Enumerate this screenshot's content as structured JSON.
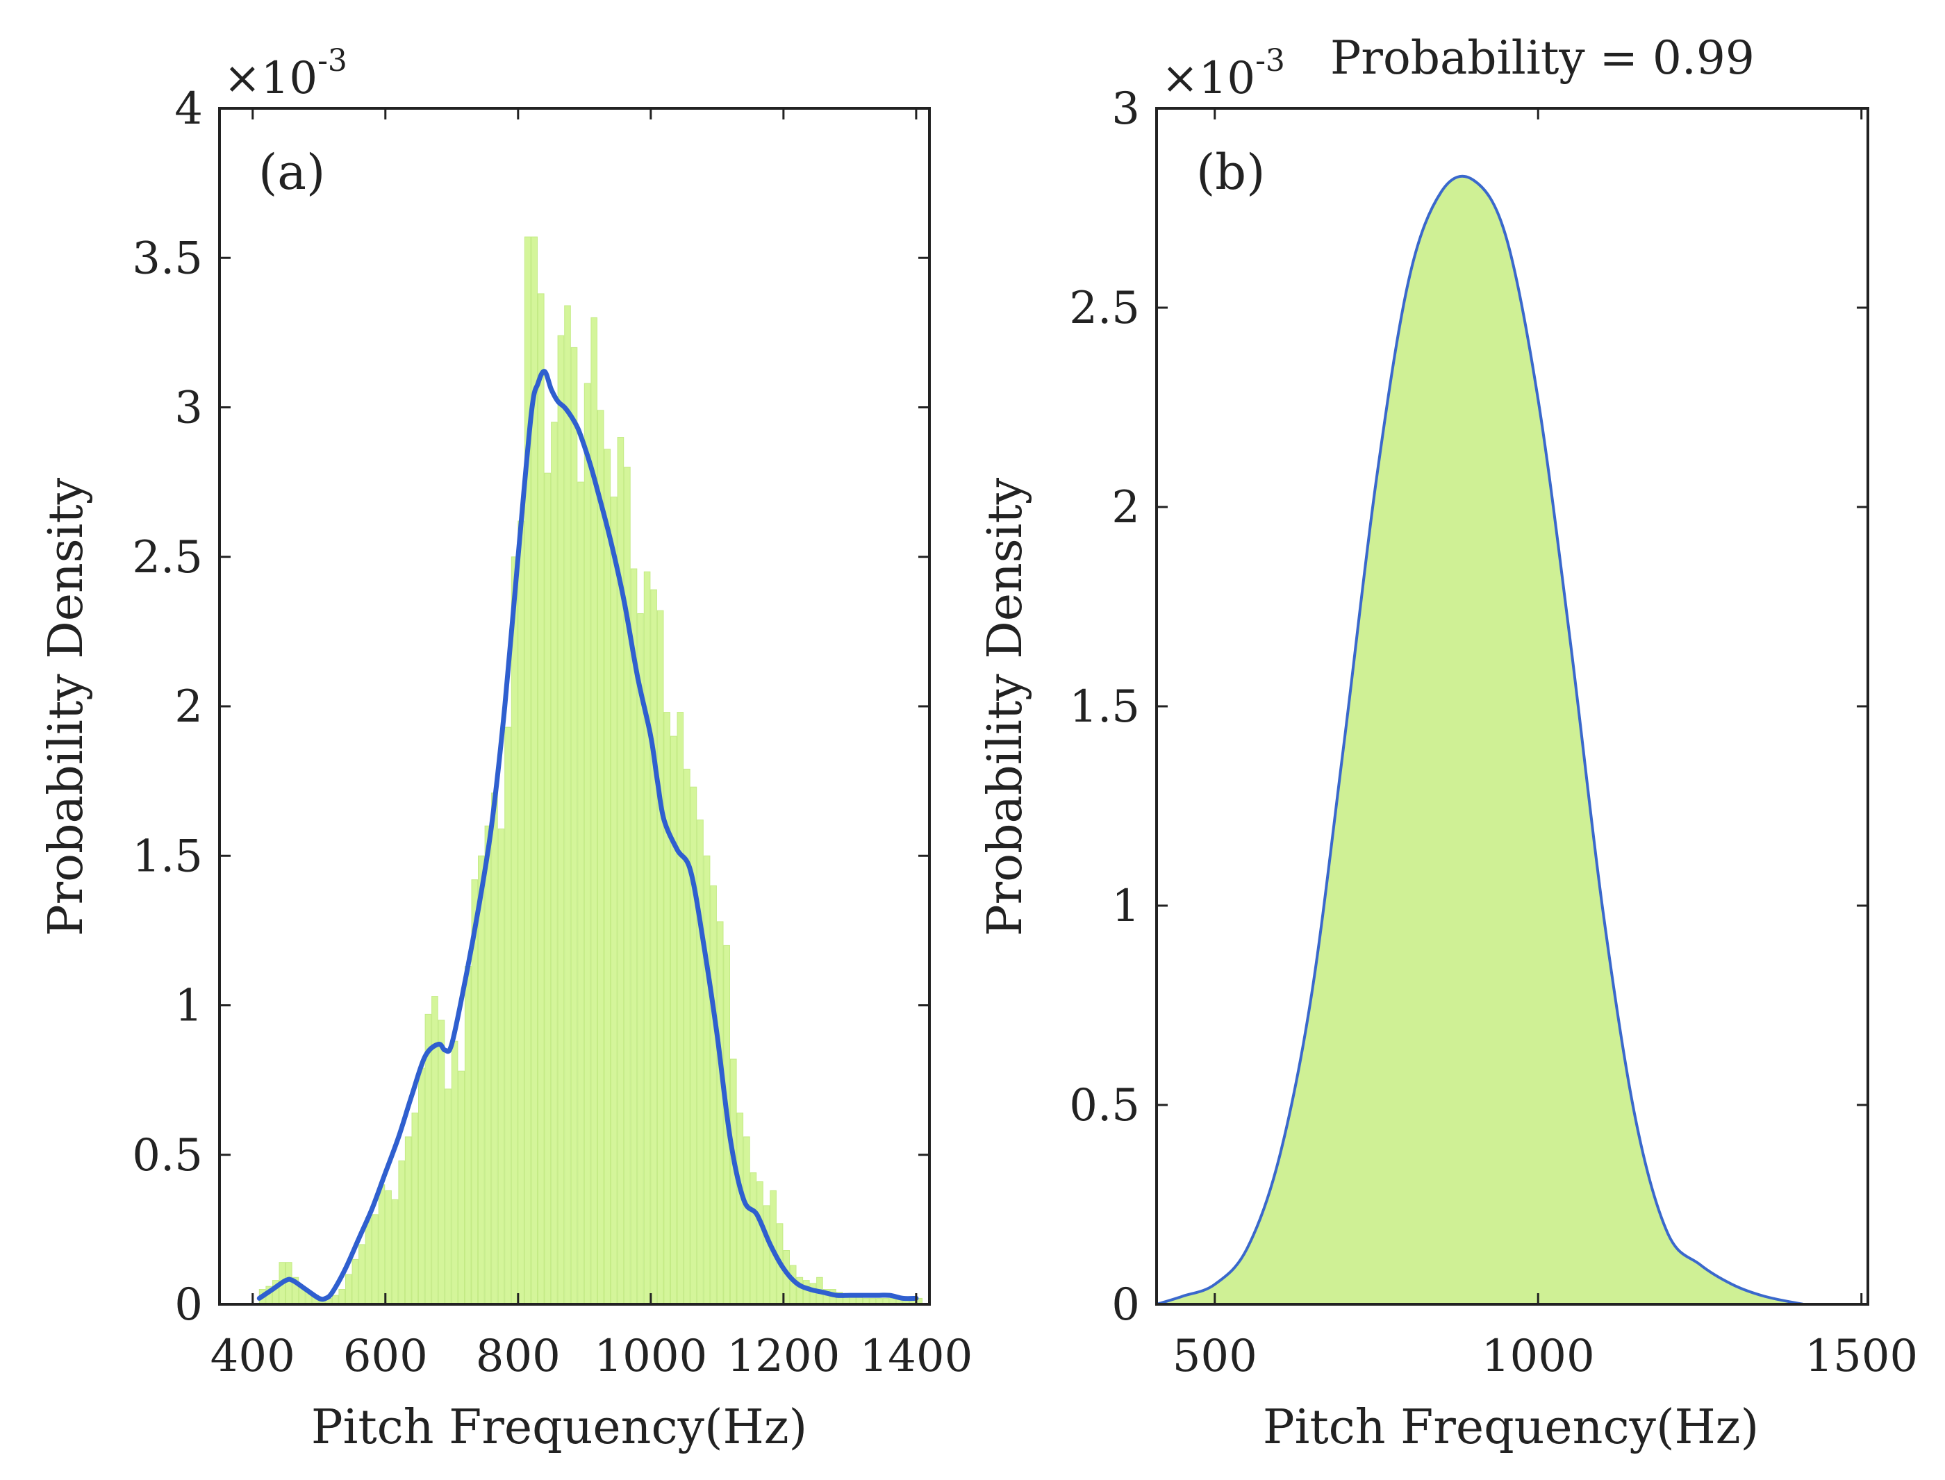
{
  "chart_data": [
    {
      "id": "a",
      "type": "histogram+line",
      "panel_label": "(a)",
      "xlabel": "Pitch Frequency(Hz)",
      "ylabel": "Probability Density",
      "y_exponent_base": "×10",
      "y_exponent_power": "-3",
      "xlim": [
        350,
        1420
      ],
      "ylim": [
        0,
        4.0
      ],
      "xticks": [
        400,
        600,
        800,
        1000,
        1200,
        1400
      ],
      "yticks": [
        0,
        0.5,
        1,
        1.5,
        2,
        2.5,
        3,
        3.5,
        4
      ],
      "ytick_labels": [
        "0",
        "0.5",
        "1",
        "1.5",
        "2",
        "2.5",
        "3",
        "3.5",
        "4"
      ],
      "hist_bin_width": 10,
      "hist": {
        "bin_starts": [
          410,
          420,
          430,
          440,
          450,
          460,
          470,
          480,
          490,
          500,
          510,
          520,
          530,
          540,
          550,
          560,
          570,
          580,
          590,
          600,
          610,
          620,
          630,
          640,
          650,
          660,
          670,
          680,
          690,
          700,
          710,
          720,
          730,
          740,
          750,
          760,
          770,
          780,
          790,
          800,
          810,
          820,
          830,
          840,
          850,
          860,
          870,
          880,
          890,
          900,
          910,
          920,
          930,
          940,
          950,
          960,
          970,
          980,
          990,
          1000,
          1010,
          1020,
          1030,
          1040,
          1050,
          1060,
          1070,
          1080,
          1090,
          1100,
          1110,
          1120,
          1130,
          1140,
          1150,
          1160,
          1170,
          1180,
          1190,
          1200,
          1210,
          1220,
          1230,
          1240,
          1250,
          1260,
          1270,
          1280,
          1290,
          1300,
          1310,
          1320,
          1330,
          1340,
          1350,
          1360,
          1370,
          1380,
          1390,
          1400
        ],
        "values": [
          0.05,
          0.06,
          0.08,
          0.14,
          0.14,
          0.09,
          0.06,
          0.04,
          0.03,
          0.02,
          0.02,
          0.03,
          0.05,
          0.1,
          0.15,
          0.2,
          0.29,
          0.3,
          0.4,
          0.38,
          0.35,
          0.48,
          0.56,
          0.64,
          0.79,
          0.97,
          1.03,
          0.95,
          0.72,
          0.88,
          0.78,
          1.13,
          1.42,
          1.5,
          1.6,
          1.71,
          1.59,
          1.93,
          2.5,
          2.62,
          3.57,
          3.57,
          3.38,
          2.78,
          2.95,
          3.24,
          3.34,
          3.2,
          2.75,
          3.08,
          3.3,
          2.99,
          2.86,
          2.7,
          2.9,
          2.8,
          2.46,
          2.31,
          2.45,
          2.39,
          2.32,
          1.98,
          1.9,
          1.98,
          1.79,
          1.73,
          1.62,
          1.5,
          1.4,
          1.28,
          1.2,
          0.82,
          0.64,
          0.56,
          0.44,
          0.41,
          0.33,
          0.38,
          0.27,
          0.18,
          0.13,
          0.09,
          0.08,
          0.07,
          0.09,
          0.05,
          0.05,
          0.04,
          0.03,
          0.03,
          0.03,
          0.02,
          0.02,
          0.02,
          0.02,
          0.02,
          0.02,
          0.02,
          0.02,
          0.02
        ]
      },
      "curve": {
        "x": [
          410,
          430,
          450,
          460,
          480,
          500,
          510,
          520,
          540,
          560,
          580,
          600,
          620,
          640,
          660,
          680,
          690,
          700,
          720,
          740,
          760,
          780,
          800,
          820,
          830,
          840,
          850,
          860,
          870,
          880,
          890,
          900,
          910,
          920,
          940,
          960,
          980,
          1000,
          1010,
          1020,
          1040,
          1060,
          1080,
          1100,
          1120,
          1140,
          1160,
          1180,
          1200,
          1220,
          1240,
          1260,
          1280,
          1300,
          1320,
          1340,
          1360,
          1380,
          1400
        ],
        "y": [
          0.02,
          0.05,
          0.08,
          0.08,
          0.05,
          0.02,
          0.02,
          0.04,
          0.12,
          0.22,
          0.32,
          0.44,
          0.56,
          0.7,
          0.83,
          0.87,
          0.85,
          0.87,
          1.08,
          1.32,
          1.6,
          2.0,
          2.5,
          2.98,
          3.08,
          3.12,
          3.06,
          3.02,
          3.0,
          2.97,
          2.93,
          2.87,
          2.8,
          2.72,
          2.55,
          2.35,
          2.1,
          1.9,
          1.75,
          1.62,
          1.52,
          1.45,
          1.2,
          0.9,
          0.55,
          0.35,
          0.3,
          0.2,
          0.12,
          0.07,
          0.05,
          0.04,
          0.03,
          0.03,
          0.03,
          0.03,
          0.03,
          0.02,
          0.02
        ]
      }
    },
    {
      "id": "b",
      "type": "area",
      "panel_label": "(b)",
      "title": "Probability = 0.99",
      "xlabel": "Pitch Frequency(Hz)",
      "ylabel": "Probability Density",
      "y_exponent_base": "×10",
      "y_exponent_power": "-3",
      "xlim": [
        410,
        1510
      ],
      "ylim": [
        0,
        3.0
      ],
      "xticks": [
        500,
        1000,
        1500
      ],
      "yticks": [
        0,
        0.5,
        1,
        1.5,
        2,
        2.5,
        3
      ],
      "ytick_labels": [
        "0",
        "0.5",
        "1",
        "1.5",
        "2",
        "2.5",
        "3"
      ],
      "curve": {
        "x": [
          410,
          450,
          500,
          550,
          600,
          650,
          700,
          750,
          800,
          850,
          900,
          950,
          1000,
          1050,
          1100,
          1150,
          1200,
          1250,
          1300,
          1350,
          1410
        ],
        "y": [
          0.0,
          0.02,
          0.05,
          0.14,
          0.37,
          0.78,
          1.41,
          2.07,
          2.57,
          2.79,
          2.82,
          2.68,
          2.27,
          1.66,
          0.99,
          0.47,
          0.18,
          0.1,
          0.05,
          0.02,
          0.0
        ]
      }
    }
  ],
  "colors": {
    "hist_fill": "#d4f59a",
    "hist_edge": "#c4eb86",
    "curve": "#2f5fcf",
    "area_fill": "#cff095",
    "area_edge": "#3a68cc",
    "axes": "#222222"
  }
}
